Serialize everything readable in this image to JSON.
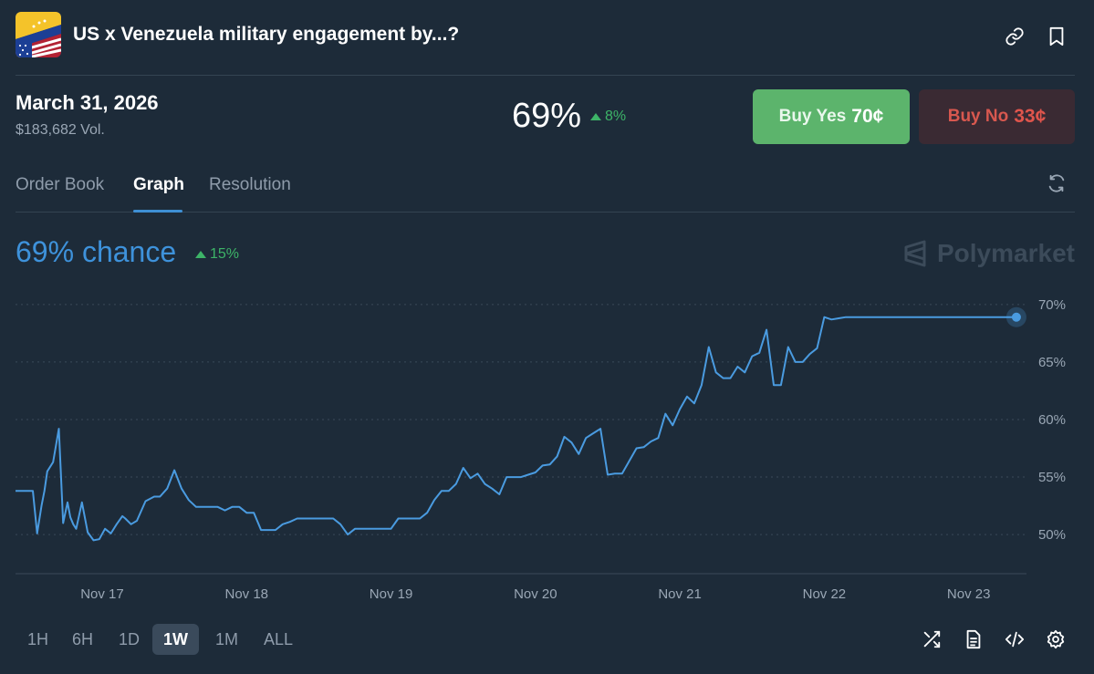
{
  "header": {
    "title": "US x Venezuela military engagement by...?",
    "icon": "us-venezuela-flag-icon"
  },
  "summary": {
    "end_date": "March 31, 2026",
    "volume": "$183,682 Vol.",
    "price": "69%",
    "price_change": "8%",
    "buy_yes_label": "Buy Yes",
    "buy_yes_price": "70¢",
    "buy_no_label": "Buy No",
    "buy_no_price": "33¢"
  },
  "tabs": [
    {
      "label": "Order Book"
    },
    {
      "label": "Graph"
    },
    {
      "label": "Resolution"
    }
  ],
  "active_tab": "Graph",
  "chance": {
    "label": "69% chance",
    "change": "15%"
  },
  "brand": "Polymarket",
  "chart_data": {
    "type": "line",
    "title": "",
    "xlabel": "",
    "ylabel": "",
    "x_tick_labels": [
      "Nov 17",
      "Nov 18",
      "Nov 19",
      "Nov 20",
      "Nov 21",
      "Nov 22",
      "Nov 23"
    ],
    "y_tick_labels": [
      "70%",
      "65%",
      "60%",
      "55%",
      "50%"
    ],
    "y_ticks": [
      70,
      65,
      60,
      55,
      50
    ],
    "ylim": [
      46.6,
      71.1
    ],
    "xlim": [
      16.4,
      23.4
    ],
    "series": [
      {
        "name": "Yes",
        "color": "#4a9be0",
        "x": [
          16.4,
          16.52,
          16.55,
          16.58,
          16.6,
          16.62,
          16.66,
          16.7,
          16.73,
          16.76,
          16.78,
          16.8,
          16.82,
          16.86,
          16.9,
          16.94,
          16.98,
          17.02,
          17.06,
          17.1,
          17.14,
          17.16,
          17.2,
          17.24,
          17.3,
          17.36,
          17.4,
          17.45,
          17.5,
          17.55,
          17.6,
          17.65,
          17.7,
          17.75,
          17.8,
          17.85,
          17.9,
          17.95,
          18.0,
          18.05,
          18.1,
          18.15,
          18.2,
          18.25,
          18.3,
          18.35,
          18.4,
          18.45,
          18.5,
          18.55,
          18.6,
          18.65,
          18.7,
          18.75,
          18.8,
          18.85,
          18.9,
          18.95,
          19.0,
          19.05,
          19.1,
          19.15,
          19.2,
          19.25,
          19.3,
          19.35,
          19.4,
          19.45,
          19.5,
          19.55,
          19.6,
          19.65,
          19.7,
          19.75,
          19.8,
          19.85,
          19.9,
          19.95,
          20.0,
          20.05,
          20.1,
          20.15,
          20.2,
          20.25,
          20.3,
          20.35,
          20.4,
          20.45,
          20.5,
          20.55,
          20.6,
          20.65,
          20.7,
          20.75,
          20.8,
          20.85,
          20.9,
          20.95,
          21.0,
          21.05,
          21.1,
          21.15,
          21.2,
          21.25,
          21.3,
          21.35,
          21.4,
          21.45,
          21.5,
          21.55,
          21.6,
          21.65,
          21.7,
          21.75,
          21.8,
          21.85,
          21.9,
          21.95,
          22.0,
          22.05,
          22.1,
          22.15,
          22.2,
          22.25,
          22.3,
          22.35,
          22.4,
          22.45,
          22.5,
          22.55,
          22.6,
          22.65,
          22.7,
          22.75,
          22.8,
          22.85,
          22.9,
          22.95,
          23.0,
          23.05,
          23.1,
          23.15,
          23.2,
          23.25,
          23.3,
          23.33
        ],
        "values": [
          53.8,
          53.8,
          50.1,
          52.5,
          53.8,
          55.5,
          56.3,
          59.2,
          51.0,
          52.8,
          51.5,
          50.9,
          50.5,
          52.8,
          50.2,
          49.5,
          49.6,
          50.5,
          50.1,
          50.9,
          51.6,
          51.4,
          50.9,
          51.2,
          52.9,
          53.3,
          53.3,
          54.0,
          55.6,
          54.0,
          53.0,
          52.4,
          52.4,
          52.4,
          52.4,
          52.1,
          52.4,
          52.4,
          51.9,
          51.9,
          50.4,
          50.4,
          50.4,
          50.9,
          51.1,
          51.4,
          51.4,
          51.4,
          51.4,
          51.4,
          51.4,
          50.9,
          50.0,
          50.5,
          50.5,
          50.5,
          50.5,
          50.5,
          50.5,
          51.4,
          51.4,
          51.4,
          51.4,
          51.9,
          53.0,
          53.8,
          53.8,
          54.4,
          55.8,
          54.9,
          55.3,
          54.4,
          54.0,
          53.5,
          55.0,
          55.0,
          55.0,
          55.2,
          55.4,
          56.0,
          56.1,
          56.8,
          58.5,
          58.0,
          57.0,
          58.4,
          58.8,
          59.2,
          55.2,
          55.3,
          55.3,
          56.4,
          57.5,
          57.6,
          58.1,
          58.4,
          60.5,
          59.5,
          60.9,
          62.0,
          61.4,
          63.0,
          66.3,
          64.1,
          63.6,
          63.6,
          64.6,
          64.1,
          65.5,
          65.8,
          67.8,
          63.0,
          63.0,
          66.3,
          65.0,
          65.0,
          65.7,
          66.2,
          68.9,
          68.7,
          68.8,
          68.9,
          68.9,
          68.9,
          68.9,
          68.9,
          68.9,
          68.9,
          68.9,
          68.9,
          68.9,
          68.9,
          68.9,
          68.9,
          68.9,
          68.9,
          68.9,
          68.9,
          68.9,
          68.9,
          68.9,
          68.9,
          68.9,
          68.9,
          68.9,
          68.9
        ],
        "last_point": {
          "x": 23.33,
          "y": 68.9
        }
      }
    ]
  },
  "time_ranges": [
    "1H",
    "6H",
    "1D",
    "1W",
    "1M",
    "ALL"
  ],
  "active_range": "1W",
  "toolbar_icons": [
    "shuffle-icon",
    "document-icon",
    "embed-code-icon",
    "settings-gear-icon"
  ],
  "colors": {
    "background": "#1d2b39",
    "accent": "#3e92db",
    "up": "#3db468",
    "buy_yes": "#5cb46c",
    "buy_no_text": "#e0554c"
  }
}
